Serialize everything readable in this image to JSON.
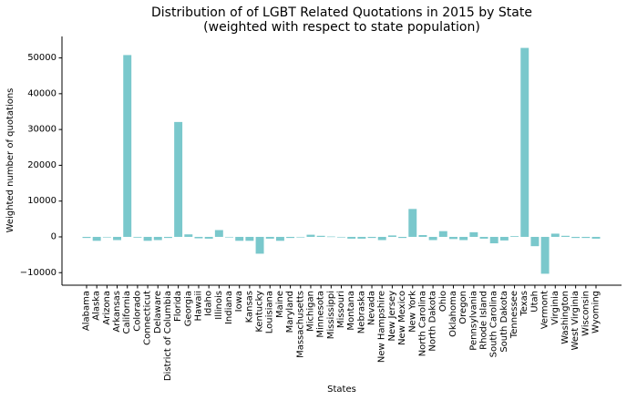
{
  "chart_data": {
    "type": "bar",
    "title_line1": "Distribution of of LGBT Related Quotations in 2015 by State",
    "title_line2": "(weighted with respect to state population)",
    "xlabel": "States",
    "ylabel": "Weighted number of quotations",
    "ylim": [
      -13500,
      56000
    ],
    "yticks": [
      -10000,
      0,
      10000,
      20000,
      30000,
      40000,
      50000
    ],
    "grid": false,
    "bar_color": "#7ac8cc",
    "categories": [
      "Alabama",
      "Alaska",
      "Arizona",
      "Arkansas",
      "California",
      "Colorado",
      "Connecticut",
      "Delaware",
      "District of Columbia",
      "Florida",
      "Georgia",
      "Hawaii",
      "Idaho",
      "Illinois",
      "Indiana",
      "Iowa",
      "Kansas",
      "Kentucky",
      "Louisiana",
      "Maine",
      "Maryland",
      "Massachusetts",
      "Michigan",
      "Minnesota",
      "Mississippi",
      "Missouri",
      "Montana",
      "Nebraska",
      "Nevada",
      "New Hampshire",
      "New Jersey",
      "New Mexico",
      "New York",
      "North Carolina",
      "North Dakota",
      "Ohio",
      "Oklahoma",
      "Oregon",
      "Pennsylvania",
      "Rhode Island",
      "South Carolina",
      "South Dakota",
      "Tennessee",
      "Texas",
      "Utah",
      "Vermont",
      "Virginia",
      "Washington",
      "West Virginia",
      "Wisconsin",
      "Wyoming"
    ],
    "values": [
      -300,
      -1100,
      -100,
      -900,
      50800,
      -200,
      -1100,
      -900,
      -300,
      32100,
      700,
      -400,
      -500,
      1900,
      -100,
      -1100,
      -1100,
      -4700,
      -500,
      -1100,
      -300,
      -100,
      600,
      300,
      100,
      -100,
      -500,
      -500,
      -300,
      -900,
      400,
      -300,
      7800,
      500,
      -900,
      1600,
      -600,
      -900,
      1300,
      -500,
      -1800,
      -1000,
      200,
      52800,
      -2600,
      -10300,
      900,
      300,
      -300,
      -300,
      -500
    ]
  }
}
